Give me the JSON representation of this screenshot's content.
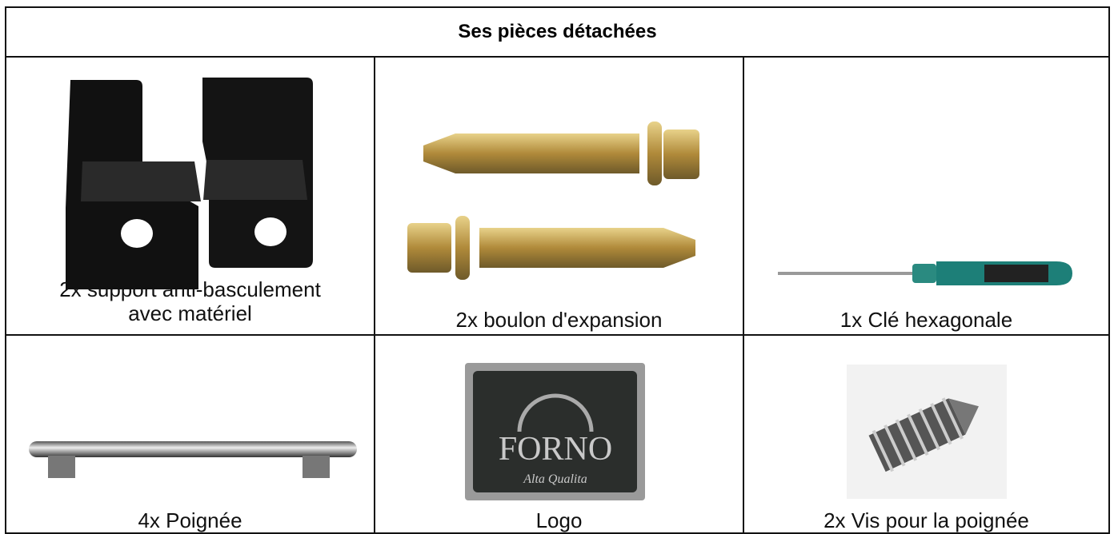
{
  "header": {
    "title": "Ses pièces détachées"
  },
  "table": {
    "rows": [
      [
        {
          "caption": "2x support anti-basculement avec matériel"
        },
        {
          "caption": "2x boulon d'expansion"
        },
        {
          "caption": "1x Clé hexagonale"
        }
      ],
      [
        {
          "caption": "4x Poignée"
        },
        {
          "caption": "Logo",
          "brand": "FORNO",
          "tagline": "Alta Qualita"
        },
        {
          "caption": "2x Vis pour la poignée"
        }
      ]
    ]
  }
}
